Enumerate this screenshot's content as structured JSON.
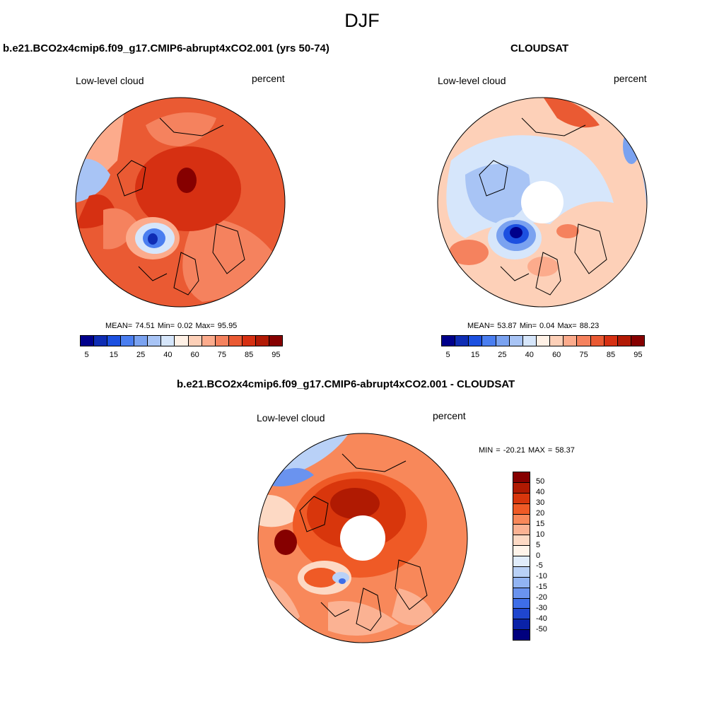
{
  "page": {
    "title": "DJF"
  },
  "panels": {
    "model": {
      "title": "b.e21.BCO2x4cmip6.f09_g17.CMIP6-abrupt4xCO2.001 (yrs 50-74)",
      "variable": "Low-level cloud",
      "units": "percent",
      "stats": "MEAN=  74.51  Min=   0.02  Max=  95.95"
    },
    "obs": {
      "title": "CLOUDSAT",
      "variable": "Low-level cloud",
      "units": "percent",
      "stats": "MEAN=  53.87  Min=   0.04  Max=  88.23"
    },
    "diff": {
      "title": "b.e21.BCO2x4cmip6.f09_g17.CMIP6-abrupt4xCO2.001 - CLOUDSAT",
      "variable": "Low-level cloud",
      "units": "percent",
      "stats": "MIN = -20.21 MAX =  58.37"
    }
  },
  "colorbars": {
    "abs": {
      "colors": [
        "#00008b",
        "#0f2db4",
        "#1c50e0",
        "#4a7ef0",
        "#7aa2f0",
        "#a8c4f5",
        "#d6e6fb",
        "#fff1e6",
        "#fdd0b8",
        "#fcab8c",
        "#f5825e",
        "#ea5a33",
        "#d63012",
        "#b21a05",
        "#860000"
      ],
      "ticks": [
        "5",
        "15",
        "25",
        "40",
        "60",
        "75",
        "85",
        "95"
      ]
    },
    "diff": {
      "colors": [
        "#860000",
        "#b01a02",
        "#d8360c",
        "#ef5a26",
        "#f8885a",
        "#fbb293",
        "#fdd9c4",
        "#fff4ea",
        "#e0ecfb",
        "#b9d1f7",
        "#92b4f3",
        "#6a93ef",
        "#3e6ee8",
        "#1f46cf",
        "#0a22a8",
        "#00007e"
      ],
      "ticks": [
        "50",
        "40",
        "30",
        "20",
        "15",
        "10",
        "5",
        "0",
        "-5",
        "-10",
        "-15",
        "-20",
        "-30",
        "-40",
        "-50"
      ]
    }
  }
}
